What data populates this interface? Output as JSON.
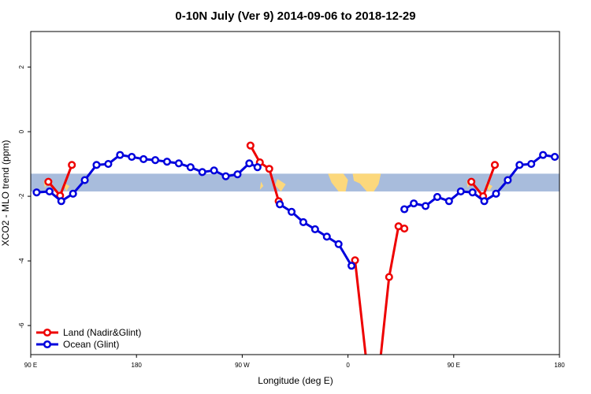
{
  "chart_data": {
    "type": "line",
    "title": "0-10N July (Ver 9)   2014-09-06 to 2018-12-29",
    "xlabel": "Longitude (deg E)",
    "ylabel": "XCO2 - MLO trend (ppm)",
    "xlim": [
      90,
      540
    ],
    "ylim": [
      -6.9,
      3.1
    ],
    "x_ticks": [
      {
        "value": 90,
        "label": "90 E"
      },
      {
        "value": 180,
        "label": "180"
      },
      {
        "value": 270,
        "label": "90 W"
      },
      {
        "value": 360,
        "label": "0"
      },
      {
        "value": 450,
        "label": "90 E"
      },
      {
        "value": 540,
        "label": "180"
      }
    ],
    "y_ticks": [
      {
        "value": 2,
        "label": "2"
      },
      {
        "value": 0,
        "label": "0"
      },
      {
        "value": -2,
        "label": "-2"
      },
      {
        "value": -4,
        "label": "-4"
      },
      {
        "value": -6,
        "label": "-6"
      }
    ],
    "map_band": {
      "ymin": -1.85,
      "ymax": -1.3,
      "ocean_color": "#a8bcdc",
      "land_color": "#fcd87c"
    },
    "series": [
      {
        "name": "Land (Nadir&Glint)",
        "color": "#ee0000",
        "segments": [
          {
            "x": [
              105,
              115,
              125
            ],
            "y": [
              -1.55,
              -1.98,
              -1.03
            ]
          },
          {
            "x": [
              277,
              285,
              293,
              301
            ],
            "y": [
              -0.43,
              -0.95,
              -1.15,
              -2.15
            ]
          },
          {
            "x": [
              366,
              375
            ],
            "y": [
              -3.98,
              -6.9
            ]
          },
          {
            "x": [
              388,
              395,
              403,
              408
            ],
            "y": [
              -6.9,
              -4.5,
              -2.93,
              -3.0
            ]
          },
          {
            "x": [
              465,
              475,
              485
            ],
            "y": [
              -1.55,
              -2.0,
              -1.03
            ]
          }
        ]
      },
      {
        "name": "Ocean (Glint)",
        "color": "#0000dd",
        "segments": [
          {
            "x": [
              95,
              106,
              116,
              126,
              136,
              146,
              156,
              166,
              176,
              186,
              196,
              206,
              216,
              226,
              236,
              246,
              256,
              266,
              276,
              283
            ],
            "y": [
              -1.88,
              -1.85,
              -2.15,
              -1.92,
              -1.5,
              -1.03,
              -1.0,
              -0.72,
              -0.78,
              -0.85,
              -0.88,
              -0.93,
              -0.98,
              -1.1,
              -1.25,
              -1.2,
              -1.38,
              -1.32,
              -0.98,
              -1.1
            ]
          },
          {
            "x": [
              302,
              312,
              322,
              332,
              342,
              352,
              363
            ],
            "y": [
              -2.25,
              -2.48,
              -2.8,
              -3.02,
              -3.25,
              -3.48,
              -4.15
            ]
          },
          {
            "x": [
              408,
              416,
              426,
              436,
              446,
              456,
              466,
              476,
              486,
              496,
              506,
              516,
              526,
              536
            ],
            "y": [
              -2.4,
              -2.22,
              -2.3,
              -2.02,
              -2.15,
              -1.85,
              -1.88,
              -2.15,
              -1.92,
              -1.5,
              -1.03,
              -1.0,
              -0.72,
              -0.78
            ]
          }
        ]
      }
    ],
    "legend": "bottom-left"
  }
}
